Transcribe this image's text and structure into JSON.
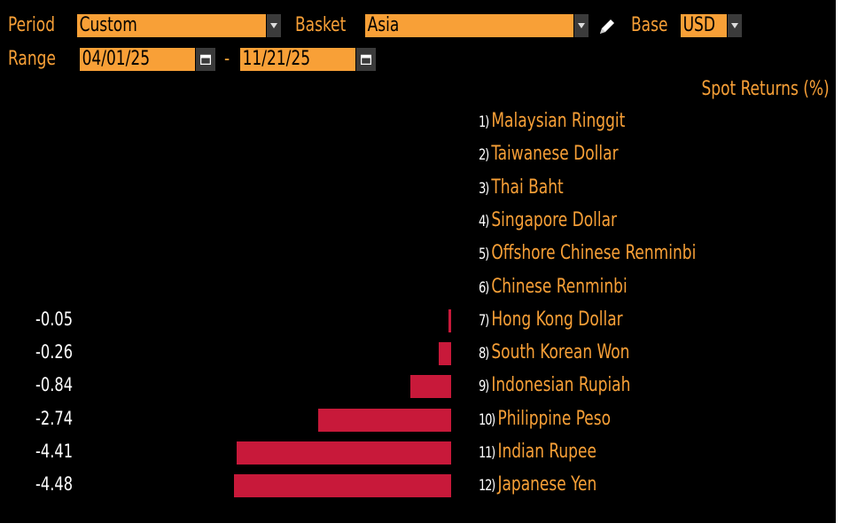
{
  "header": {
    "period_label": "Period",
    "period_value": "Custom",
    "basket_label": "Basket",
    "basket_value": "Asia",
    "base_label": "Base",
    "base_value": "USD",
    "range_label": "Range",
    "range_start": "04/01/25",
    "range_dash": "-",
    "range_end": "11/21/25"
  },
  "colors": {
    "accent": "#f8a037",
    "bar": "#c8193a",
    "background": "#000000",
    "value_text": "#ffffff"
  },
  "icons": {
    "dropdown": "chevron-down-icon",
    "calendar": "calendar-icon",
    "edit": "pencil-icon"
  },
  "chart_data": {
    "type": "bar",
    "title": "Spot Returns (%)",
    "xlim": [
      -4.6,
      0
    ],
    "categories": [
      {
        "rank": "1)",
        "name": "Malaysian Ringgit",
        "value": null,
        "label": ""
      },
      {
        "rank": "2)",
        "name": "Taiwanese Dollar",
        "value": null,
        "label": ""
      },
      {
        "rank": "3)",
        "name": "Thai Baht",
        "value": null,
        "label": ""
      },
      {
        "rank": "4)",
        "name": "Singapore Dollar",
        "value": null,
        "label": ""
      },
      {
        "rank": "5)",
        "name": "Offshore Chinese Renminbi",
        "value": null,
        "label": ""
      },
      {
        "rank": "6)",
        "name": "Chinese Renminbi",
        "value": null,
        "label": ""
      },
      {
        "rank": "7)",
        "name": "Hong Kong Dollar",
        "value": -0.05,
        "label": "-0.05"
      },
      {
        "rank": "8)",
        "name": "South Korean Won",
        "value": -0.26,
        "label": "-0.26"
      },
      {
        "rank": "9)",
        "name": "Indonesian Rupiah",
        "value": -0.84,
        "label": "-0.84"
      },
      {
        "rank": "10)",
        "name": "Philippine Peso",
        "value": -2.74,
        "label": "-2.74"
      },
      {
        "rank": "11)",
        "name": "Indian Rupee",
        "value": -4.41,
        "label": "-4.41"
      },
      {
        "rank": "12)",
        "name": "Japanese Yen",
        "value": -4.48,
        "label": "-4.48"
      }
    ]
  }
}
